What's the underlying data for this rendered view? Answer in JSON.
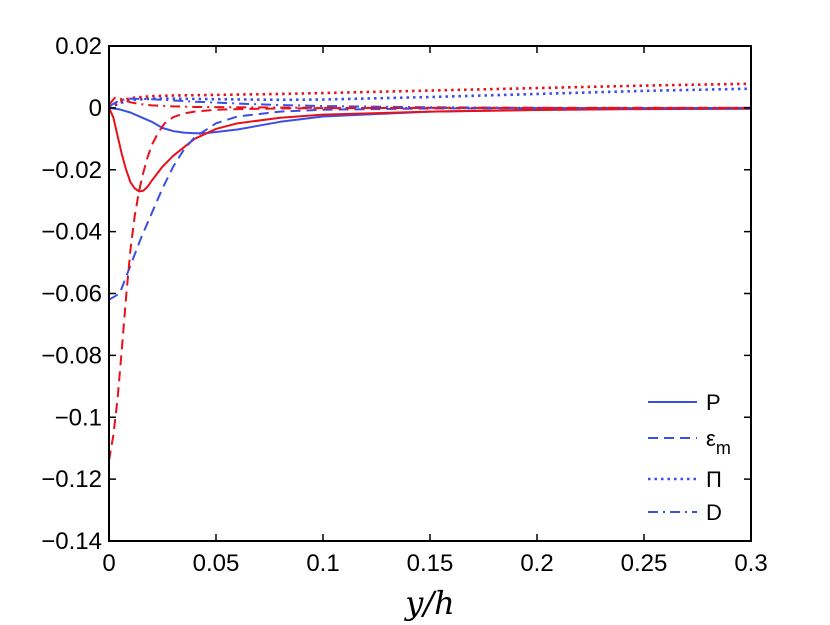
{
  "chart_data": {
    "type": "line",
    "title": "",
    "xlabel": "y/h",
    "ylabel": "",
    "xlim": [
      0,
      0.3
    ],
    "ylim": [
      -0.14,
      0.02
    ],
    "xticks": [
      0,
      0.05,
      0.1,
      0.15,
      0.2,
      0.25,
      0.3
    ],
    "xtick_labels": [
      "0",
      "0.05",
      "0.1",
      "0.15",
      "0.2",
      "0.25",
      "0.3"
    ],
    "yticks": [
      0.02,
      0,
      -0.02,
      -0.04,
      -0.06,
      -0.08,
      -0.1,
      -0.12,
      -0.14
    ],
    "ytick_labels": [
      "0.02",
      "0",
      "−0.02",
      "−0.04",
      "−0.06",
      "−0.08",
      "−0.1",
      "−0.12",
      "−0.14"
    ],
    "grid": false,
    "legend_position": "lower-right",
    "legend": [
      {
        "label": "P",
        "style": "solid"
      },
      {
        "label": "ε",
        "subscript": "m",
        "style": "dashed"
      },
      {
        "label": "Π",
        "style": "dotted"
      },
      {
        "label": "D",
        "style": "dashdot"
      }
    ],
    "colors": {
      "blue": "#3a4fe6",
      "red": "#e8111b"
    },
    "series": [
      {
        "term": "P",
        "color": "blue",
        "style": "solid",
        "x": [
          0,
          0.005,
          0.01,
          0.015,
          0.02,
          0.025,
          0.03,
          0.035,
          0.04,
          0.045,
          0.05,
          0.06,
          0.08,
          0.1,
          0.15,
          0.2,
          0.25,
          0.3
        ],
        "y": [
          0,
          -0.0005,
          -0.0015,
          -0.003,
          -0.0045,
          -0.0065,
          -0.0075,
          -0.008,
          -0.0082,
          -0.0082,
          -0.0078,
          -0.007,
          -0.0045,
          -0.0028,
          -0.0012,
          -0.0006,
          -0.0003,
          -0.0002
        ]
      },
      {
        "term": "P",
        "color": "red",
        "style": "solid",
        "x": [
          0,
          0.002,
          0.004,
          0.006,
          0.008,
          0.01,
          0.012,
          0.014,
          0.016,
          0.018,
          0.02,
          0.025,
          0.03,
          0.04,
          0.05,
          0.06,
          0.08,
          0.1,
          0.15,
          0.2,
          0.25,
          0.3
        ],
        "y": [
          0,
          -0.003,
          -0.009,
          -0.015,
          -0.02,
          -0.024,
          -0.026,
          -0.027,
          -0.0268,
          -0.0255,
          -0.0235,
          -0.019,
          -0.0155,
          -0.01,
          -0.0068,
          -0.005,
          -0.0032,
          -0.0022,
          -0.0012,
          -0.0007,
          -0.0004,
          -0.0003
        ]
      },
      {
        "term": "εm",
        "color": "blue",
        "style": "dashed",
        "x": [
          0,
          0.005,
          0.01,
          0.015,
          0.02,
          0.025,
          0.03,
          0.035,
          0.04,
          0.05,
          0.06,
          0.08,
          0.1,
          0.15,
          0.2,
          0.25,
          0.3
        ],
        "y": [
          -0.062,
          -0.06,
          -0.051,
          -0.042,
          -0.034,
          -0.026,
          -0.019,
          -0.0135,
          -0.0095,
          -0.005,
          -0.0028,
          -0.0012,
          -0.0006,
          -0.0002,
          -0.0001,
          -0.0001,
          0
        ]
      },
      {
        "term": "εm",
        "color": "red",
        "style": "dashed",
        "x": [
          0,
          0.002,
          0.004,
          0.006,
          0.008,
          0.01,
          0.012,
          0.014,
          0.016,
          0.018,
          0.02,
          0.023,
          0.026,
          0.03,
          0.035,
          0.04,
          0.05,
          0.06,
          0.08,
          0.1,
          0.15,
          0.2,
          0.3
        ],
        "y": [
          -0.114,
          -0.106,
          -0.094,
          -0.078,
          -0.061,
          -0.046,
          -0.035,
          -0.027,
          -0.021,
          -0.016,
          -0.012,
          -0.008,
          -0.005,
          -0.003,
          -0.0018,
          -0.0012,
          -0.0006,
          -0.0004,
          -0.0002,
          -0.0001,
          0,
          0,
          0
        ]
      },
      {
        "term": "Π",
        "color": "blue",
        "style": "dotted",
        "x": [
          0,
          0.005,
          0.01,
          0.02,
          0.03,
          0.05,
          0.08,
          0.1,
          0.15,
          0.2,
          0.25,
          0.3
        ],
        "y": [
          0,
          0.0015,
          0.0025,
          0.003,
          0.003,
          0.0028,
          0.0026,
          0.0027,
          0.0035,
          0.0045,
          0.0055,
          0.0062
        ]
      },
      {
        "term": "Π",
        "color": "red",
        "style": "dotted",
        "x": [
          0,
          0.005,
          0.01,
          0.02,
          0.03,
          0.05,
          0.08,
          0.1,
          0.15,
          0.2,
          0.25,
          0.3
        ],
        "y": [
          0,
          0.002,
          0.0032,
          0.0038,
          0.004,
          0.0042,
          0.0045,
          0.0048,
          0.0056,
          0.0064,
          0.0072,
          0.0078
        ]
      },
      {
        "term": "D",
        "color": "blue",
        "style": "dashdot",
        "x": [
          0,
          0.005,
          0.01,
          0.02,
          0.03,
          0.04,
          0.06,
          0.08,
          0.1,
          0.15,
          0.2,
          0.3
        ],
        "y": [
          0.0005,
          0.0025,
          0.003,
          0.0028,
          0.0024,
          0.002,
          0.0014,
          0.0009,
          0.0006,
          0.0002,
          0,
          -0.0003
        ]
      },
      {
        "term": "D",
        "color": "red",
        "style": "dashdot",
        "x": [
          0,
          0.003,
          0.006,
          0.01,
          0.015,
          0.02,
          0.03,
          0.04,
          0.06,
          0.08,
          0.1,
          0.15,
          0.2,
          0.3
        ],
        "y": [
          0.001,
          0.0035,
          0.0028,
          0.0018,
          0.0012,
          0.0008,
          0.0005,
          0.0003,
          0.0002,
          0.0001,
          0,
          0,
          0,
          0
        ]
      }
    ]
  }
}
